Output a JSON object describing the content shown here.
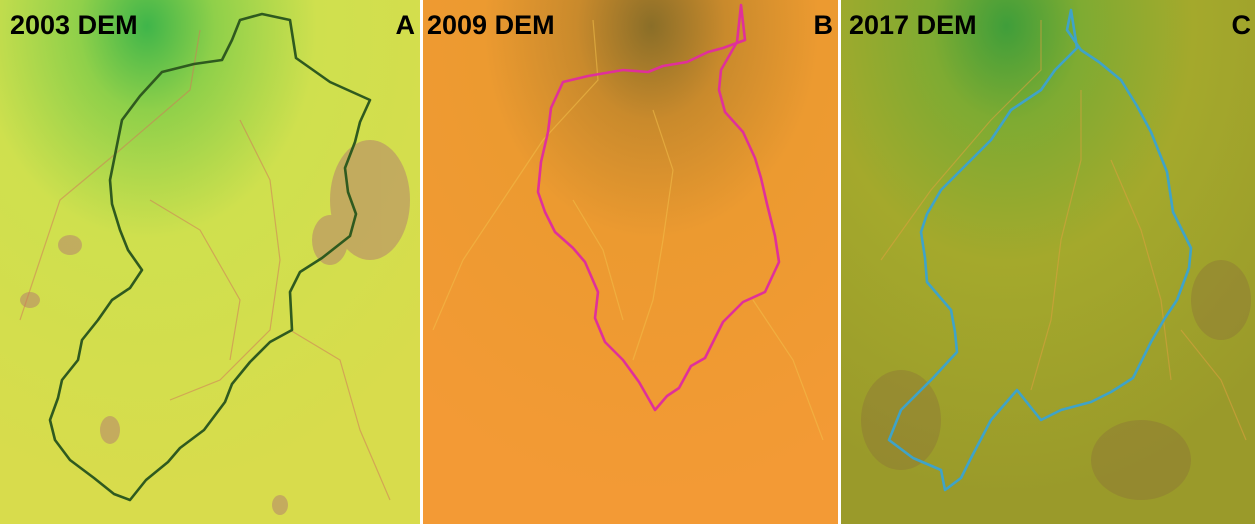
{
  "panels": [
    {
      "title": "2003 DEM",
      "label": "A"
    },
    {
      "title": "2009 DEM",
      "label": "B"
    },
    {
      "title": "2017 DEM",
      "label": "C"
    }
  ]
}
